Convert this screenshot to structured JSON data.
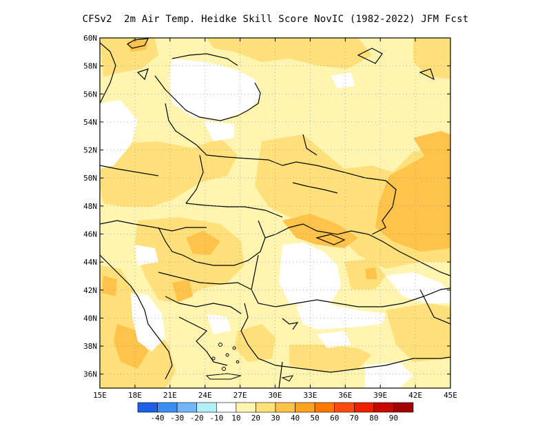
{
  "title": "CFSv2  2m Air Temp. Heidke Skill Score NovIC (1982-2022) JFM Fcst",
  "map": {
    "lon_range": [
      15,
      45
    ],
    "lat_range": [
      35,
      60
    ],
    "lon_ticks": [
      "15E",
      "18E",
      "21E",
      "24E",
      "27E",
      "30E",
      "33E",
      "36E",
      "39E",
      "42E",
      "45E"
    ],
    "lat_ticks": [
      "36N",
      "38N",
      "40N",
      "42N",
      "44N",
      "46N",
      "48N",
      "50N",
      "52N",
      "54N",
      "56N",
      "58N",
      "60N"
    ],
    "grid": "dotted"
  },
  "colorbar": {
    "colors": [
      "#1f5fe6",
      "#3a8ef0",
      "#73b6f5",
      "#b4f0fa",
      "#ffffff",
      "#fff5b0",
      "#ffe07a",
      "#ffc24a",
      "#ffa21e",
      "#ff7800",
      "#ff4a10",
      "#ee2000",
      "#c80800",
      "#a00000"
    ],
    "labels": [
      "-40",
      "-30",
      "-20",
      "-10",
      "10",
      "20",
      "30",
      "40",
      "50",
      "60",
      "70",
      "80",
      "90"
    ]
  },
  "colors": {
    "c10": "#fff5b0",
    "c20": "#ffe07a",
    "c30": "#ffc24a",
    "c40": "#ffa21e"
  }
}
